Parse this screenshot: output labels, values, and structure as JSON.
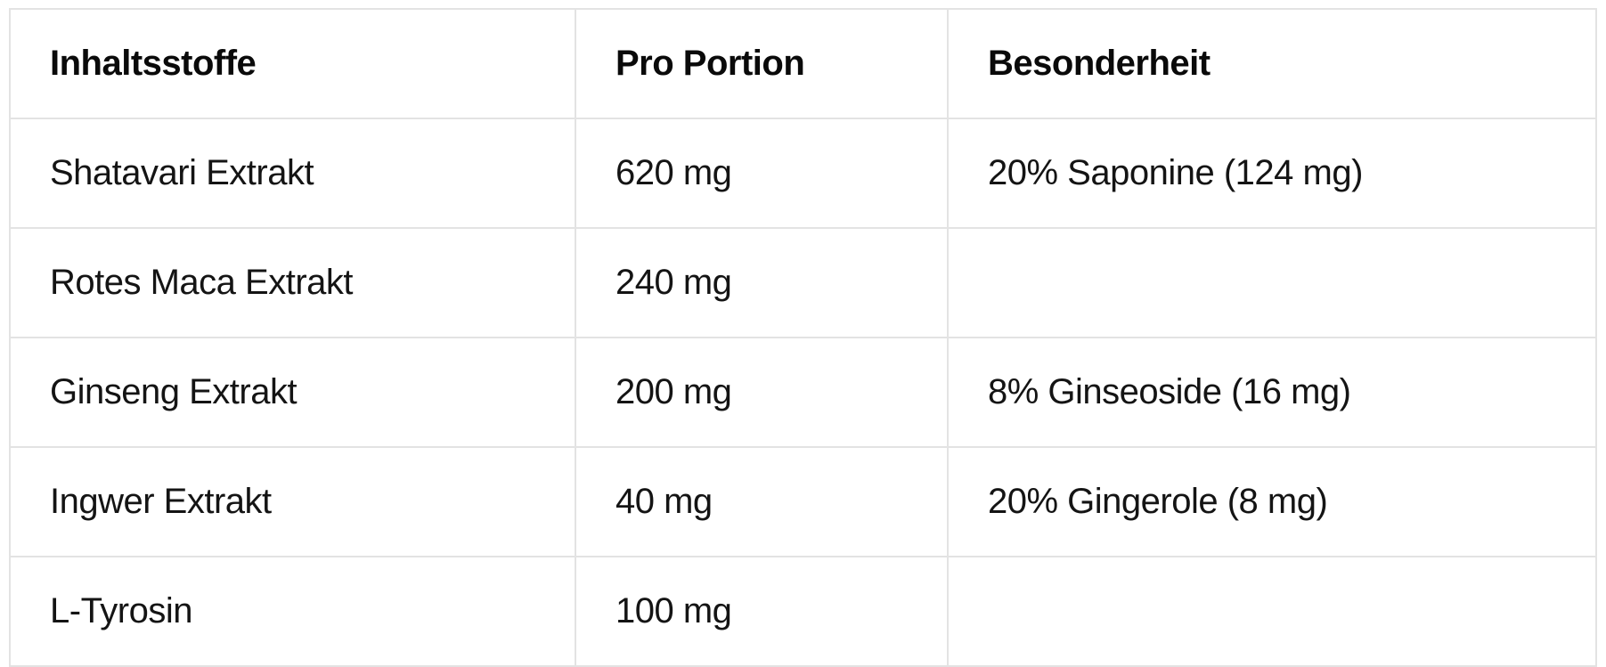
{
  "table": {
    "headers": [
      "Inhaltsstoffe",
      "Pro Portion",
      "Besonderheit"
    ],
    "rows": [
      [
        "Shatavari Extrakt",
        "620 mg",
        "20% Saponine (124 mg)"
      ],
      [
        "Rotes Maca Extrakt",
        "240 mg",
        ""
      ],
      [
        "Ginseng Extrakt",
        "200 mg",
        "8% Ginseoside (16 mg)"
      ],
      [
        "Ingwer Extrakt",
        "40 mg",
        "20% Gingerole (8 mg)"
      ],
      [
        "L-Tyrosin",
        "100 mg",
        ""
      ]
    ]
  },
  "colors": {
    "border": "#e3e3e3",
    "text": "#111111",
    "background": "#ffffff"
  }
}
